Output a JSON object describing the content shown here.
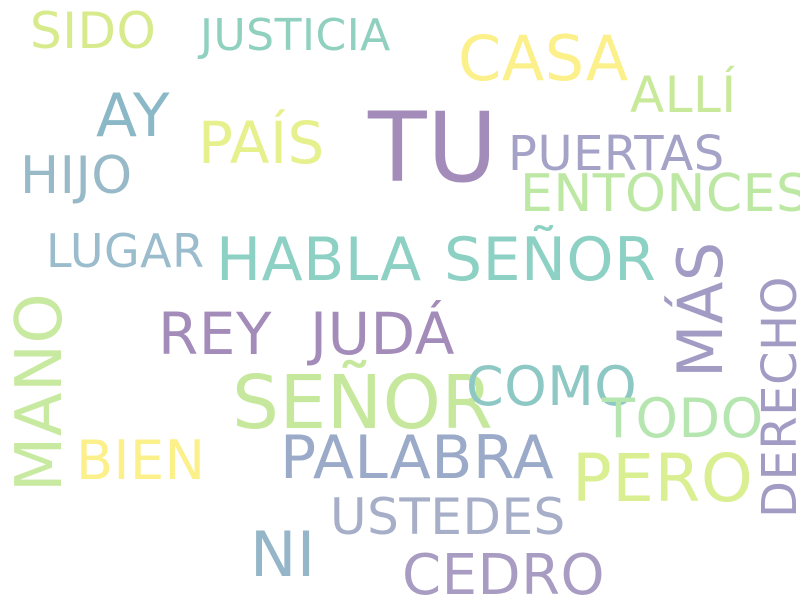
{
  "words": [
    {
      "id": "sido",
      "text": "SIDO",
      "color": "#d7eb8c"
    },
    {
      "id": "justicia",
      "text": "JUSTICIA",
      "color": "#8fd0bf"
    },
    {
      "id": "casa",
      "text": "CASA",
      "color": "#fbf08a"
    },
    {
      "id": "alli",
      "text": "ALLÍ",
      "color": "#c8e99a"
    },
    {
      "id": "ay",
      "text": "AY",
      "color": "#8ab8c6"
    },
    {
      "id": "tu",
      "text": "TU",
      "color": "#a48cba"
    },
    {
      "id": "pais",
      "text": "PAÍS",
      "color": "#e6f08c"
    },
    {
      "id": "puertas",
      "text": "PUERTAS",
      "color": "#a5a2c8"
    },
    {
      "id": "hijo",
      "text": "HIJO",
      "color": "#98bac8"
    },
    {
      "id": "entonces",
      "text": "ENTONCES",
      "color": "#bde8a4"
    },
    {
      "id": "lugar",
      "text": "LUGAR",
      "color": "#9bbccc"
    },
    {
      "id": "habla",
      "text": "HABLA",
      "color": "#8dd0c4"
    },
    {
      "id": "senor-1",
      "text": "SEÑOR",
      "color": "#8dd0c4"
    },
    {
      "id": "mas",
      "text": "MÁS",
      "color": "#a29cc4"
    },
    {
      "id": "rey",
      "text": "REY",
      "color": "#a48cba"
    },
    {
      "id": "juda",
      "text": "JUDÁ",
      "color": "#a48cba"
    },
    {
      "id": "mano",
      "text": "MANO",
      "color": "#c8e9a0"
    },
    {
      "id": "derecho",
      "text": "DERECHO",
      "color": "#a29cc4"
    },
    {
      "id": "senor-2",
      "text": "SEÑOR",
      "color": "#c6e89c"
    },
    {
      "id": "como",
      "text": "COMO",
      "color": "#8dc8c4"
    },
    {
      "id": "todo",
      "text": "TODO",
      "color": "#b6e6b0"
    },
    {
      "id": "bien",
      "text": "BIEN",
      "color": "#fbf08a"
    },
    {
      "id": "palabra",
      "text": "PALABRA",
      "color": "#9aaac8"
    },
    {
      "id": "pero",
      "text": "PERO",
      "color": "#d9ef92"
    },
    {
      "id": "ustedes",
      "text": "USTEDES",
      "color": "#a6aec8"
    },
    {
      "id": "ni",
      "text": "NI",
      "color": "#95b6c8"
    },
    {
      "id": "cedro",
      "text": "CEDRO",
      "color": "#a99cc2"
    }
  ]
}
